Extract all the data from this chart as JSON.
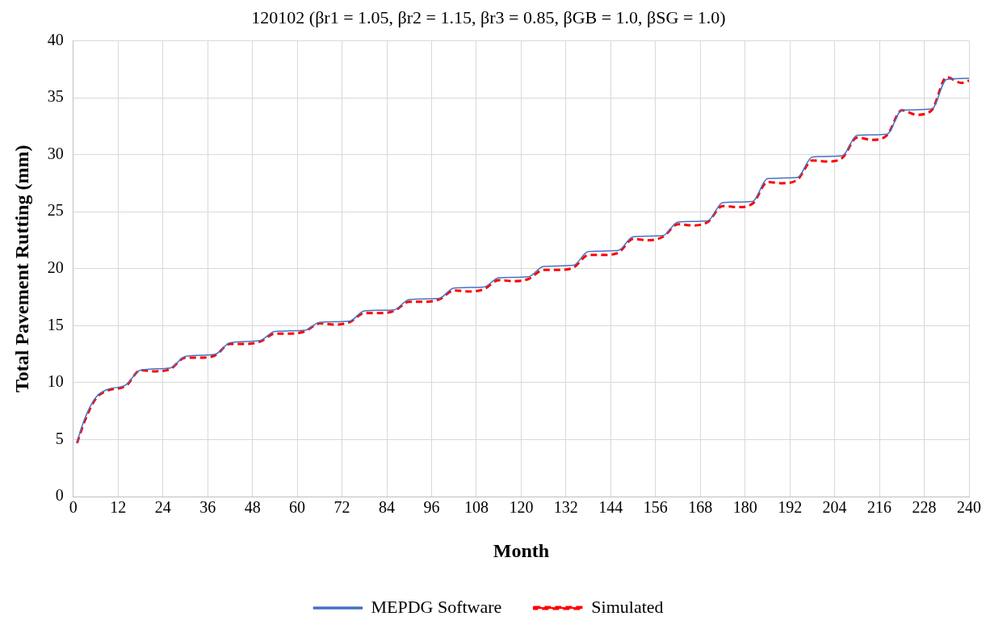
{
  "chart_data": {
    "type": "line",
    "title": "120102 (βr1 = 1.05, βr2 = 1.15, βr3 = 0.85, βGB = 1.0, βSG = 1.0)",
    "xlabel": "Month",
    "ylabel": "Total Pavement Rutting (mm)",
    "xlim": [
      0,
      240
    ],
    "xticks": [
      0,
      12,
      24,
      36,
      48,
      60,
      72,
      84,
      96,
      108,
      120,
      132,
      144,
      156,
      168,
      180,
      192,
      204,
      216,
      228,
      240
    ],
    "ylim": [
      0,
      40
    ],
    "yticks": [
      0,
      5,
      10,
      15,
      20,
      25,
      30,
      35,
      40
    ],
    "grid": true,
    "legend": "bottom",
    "marker": "none",
    "series": [
      {
        "name": "MEPDG Software",
        "color": "#4472c4",
        "line_style": "solid",
        "x": [
          1,
          3,
          6,
          9,
          14,
          18,
          26,
          30,
          38,
          42,
          50,
          54,
          62,
          66,
          74,
          78,
          86,
          90,
          98,
          102,
          110,
          114,
          122,
          126,
          134,
          138,
          146,
          150,
          158,
          162,
          170,
          174,
          182,
          186,
          194,
          198,
          206,
          210,
          218,
          222,
          230,
          234,
          240
        ],
        "values": [
          4.8,
          6.8,
          8.7,
          9.4,
          9.8,
          11.1,
          11.3,
          12.3,
          12.5,
          13.5,
          13.7,
          14.5,
          14.6,
          15.3,
          15.4,
          16.3,
          16.4,
          17.3,
          17.4,
          18.3,
          18.4,
          19.2,
          19.3,
          20.2,
          20.3,
          21.5,
          21.6,
          22.8,
          22.9,
          24.1,
          24.2,
          25.8,
          25.9,
          27.9,
          28.0,
          29.8,
          29.9,
          31.7,
          31.8,
          33.9,
          34.0,
          36.6,
          36.7
        ]
      },
      {
        "name": "Simulated",
        "color": "#ff0000",
        "line_style": "dashed",
        "x": [
          1,
          3,
          6,
          9,
          14,
          18,
          22,
          26,
          30,
          34,
          38,
          42,
          46,
          50,
          54,
          58,
          62,
          66,
          70,
          74,
          78,
          82,
          86,
          90,
          94,
          98,
          102,
          106,
          110,
          114,
          118,
          122,
          126,
          130,
          134,
          138,
          142,
          146,
          150,
          154,
          158,
          162,
          166,
          170,
          174,
          178,
          182,
          186,
          190,
          194,
          198,
          202,
          206,
          210,
          214,
          218,
          222,
          226,
          230,
          234,
          238,
          240
        ],
        "values": [
          4.7,
          6.6,
          8.6,
          9.3,
          9.7,
          11.1,
          11.0,
          11.2,
          12.2,
          12.2,
          12.4,
          13.4,
          13.4,
          13.6,
          14.3,
          14.3,
          14.5,
          15.2,
          15.1,
          15.3,
          16.1,
          16.1,
          16.3,
          17.1,
          17.1,
          17.3,
          18.1,
          18.0,
          18.2,
          19.0,
          18.9,
          19.1,
          19.9,
          19.9,
          20.1,
          21.2,
          21.2,
          21.4,
          22.6,
          22.5,
          22.8,
          23.9,
          23.8,
          24.1,
          25.5,
          25.4,
          25.7,
          27.6,
          27.5,
          27.8,
          29.5,
          29.4,
          29.7,
          31.5,
          31.3,
          31.7,
          33.9,
          33.5,
          33.9,
          36.8,
          36.3,
          36.5
        ]
      }
    ]
  }
}
